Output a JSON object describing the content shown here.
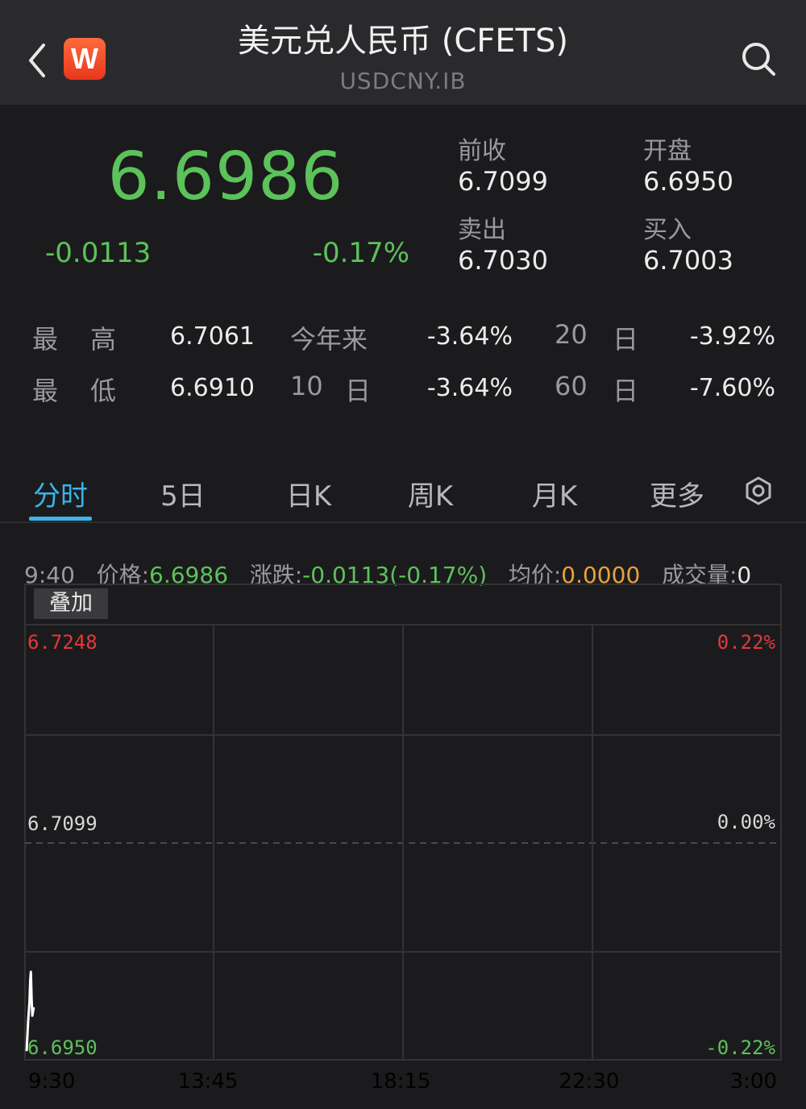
{
  "header": {
    "back_icon": "chevron-left-icon",
    "logo_letter": "W",
    "logo_color": "#e8371d",
    "title": "美元兑人民币 (CFETS)",
    "subtitle": "USDCNY.IB",
    "search_icon": "search-icon"
  },
  "quote": {
    "price": "6.6986",
    "change": "-0.0113",
    "change_pct": "-0.17%",
    "prev_close_label": "前收",
    "prev_close": "6.7099",
    "open_label": "开盘",
    "open": "6.6950",
    "ask_label": "卖出",
    "ask": "6.7030",
    "bid_label": "买入",
    "bid": "6.7003"
  },
  "stats": {
    "high_label_1": "最",
    "high_label_2": "高",
    "high": "6.7061",
    "low_label_1": "最",
    "low_label_2": "低",
    "low": "6.6910",
    "ytd_label": "今年来",
    "ytd": "-3.64%",
    "d10_label_num": "10",
    "d10_label_unit": "日",
    "d10": "-3.64%",
    "d20_label_num": "20",
    "d20_label_unit": "日",
    "d20": "-3.92%",
    "d60_label_num": "60",
    "d60_label_unit": "日",
    "d60": "-7.60%"
  },
  "tabs": [
    {
      "label": "分时",
      "active": true
    },
    {
      "label": "5日"
    },
    {
      "label": "日K"
    },
    {
      "label": "周K"
    },
    {
      "label": "月K"
    },
    {
      "label": "更多"
    }
  ],
  "settings_icon": "settings-icon",
  "info": {
    "time": "9:40",
    "price_label": "价格:",
    "price": "6.6986",
    "change_label": "涨跌:",
    "change": "-0.0113(-0.17%)",
    "avg_label": "均价:",
    "avg": "0.0000",
    "volume_label": "成交量:",
    "volume": "0"
  },
  "chart": {
    "overlay_label": "叠加",
    "y_top": "6.7248",
    "y_mid": "6.7099",
    "y_bottom": "6.6950",
    "pct_top": "0.22%",
    "pct_mid": "0.00%",
    "pct_bottom": "-0.22%",
    "x_labels": [
      "9:30",
      "13:45",
      "18:15",
      "22:30",
      "3:00"
    ]
  },
  "chart_data": {
    "type": "line",
    "y_range": [
      6.695,
      6.7248
    ],
    "y_reference": 6.7099,
    "x_range": [
      "9:30",
      "3:00"
    ],
    "series": [
      {
        "x": [
          "9:30",
          "9:32",
          "9:34",
          "9:35",
          "9:36",
          "9:37",
          "9:38",
          "9:40"
        ],
        "values": [
          6.6955,
          6.6975,
          6.699,
          6.7005,
          6.7011,
          6.6992,
          6.698,
          6.6986
        ]
      }
    ]
  }
}
